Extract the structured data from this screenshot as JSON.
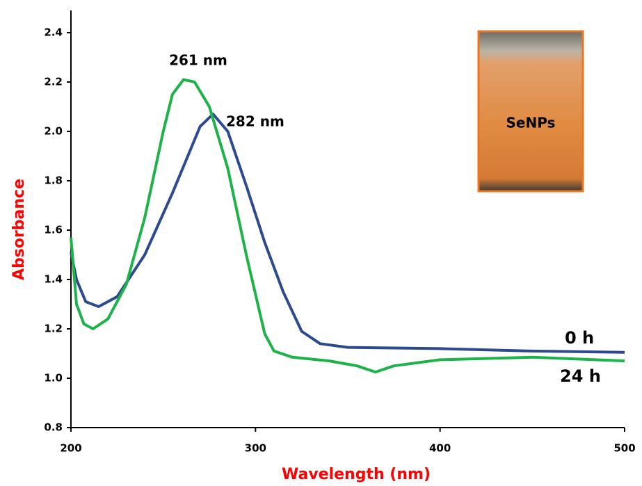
{
  "chart_data": {
    "type": "line",
    "x_label": "Wavelength (nm)",
    "y_label": "Absorbance",
    "xlim": [
      200,
      500
    ],
    "ylim": [
      0.8,
      2.49
    ],
    "xticks": [
      200,
      300,
      400,
      500
    ],
    "yticks": [
      0.8,
      {
        "value": 1,
        "label": "1.0"
      },
      1.2,
      1.4,
      1.6,
      1.8,
      {
        "value": 2,
        "label": "2.0"
      },
      2.2,
      2.4
    ],
    "series": [
      {
        "name": "0 h",
        "color": "#2e4a8f",
        "x": [
          200,
          203,
          208,
          215,
          225,
          240,
          255,
          270,
          277,
          285,
          295,
          305,
          315,
          325,
          335,
          350,
          400,
          450,
          500
        ],
        "values": [
          1.51,
          1.4,
          1.31,
          1.29,
          1.33,
          1.5,
          1.75,
          2.02,
          2.07,
          2.0,
          1.78,
          1.55,
          1.35,
          1.19,
          1.14,
          1.125,
          1.12,
          1.11,
          1.105
        ]
      },
      {
        "name": "24 h",
        "color": "#1db34a",
        "x": [
          200,
          203,
          207,
          212,
          220,
          230,
          240,
          250,
          255,
          261,
          267,
          275,
          285,
          295,
          305,
          310,
          320,
          340,
          355,
          365,
          375,
          400,
          450,
          500
        ],
        "values": [
          1.57,
          1.3,
          1.22,
          1.2,
          1.24,
          1.38,
          1.65,
          2.0,
          2.15,
          2.21,
          2.2,
          2.1,
          1.85,
          1.5,
          1.18,
          1.11,
          1.085,
          1.07,
          1.05,
          1.025,
          1.05,
          1.075,
          1.085,
          1.07
        ]
      }
    ],
    "annotations": [
      "261 nm",
      "282 nm"
    ],
    "inset_label": "SeNPs"
  }
}
